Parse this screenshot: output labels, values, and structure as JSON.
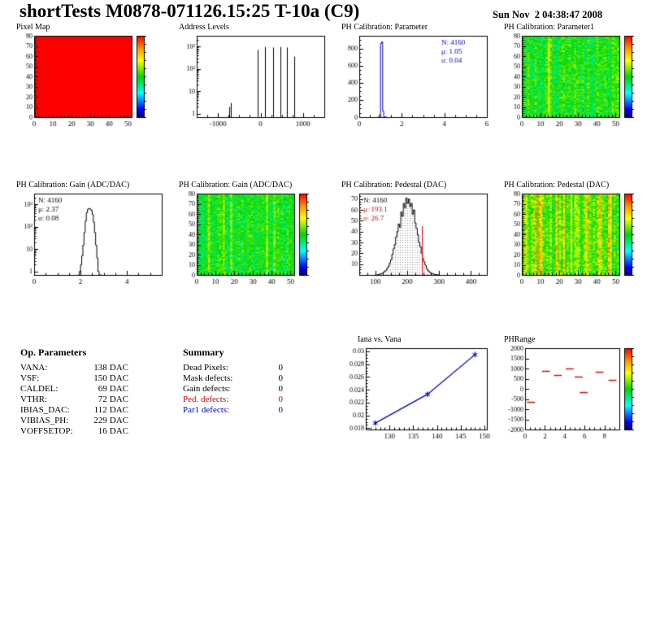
{
  "header": {
    "title": "shortTests M0878-071126.15:25 T-10a (C9)",
    "timestamp": "Sun Nov  2 04:38:47 2008"
  },
  "op_parameters": {
    "title": "Op. Parameters",
    "rows": [
      {
        "label": "VANA:",
        "num": "138",
        "unit": "DAC"
      },
      {
        "label": "VSF:",
        "num": "150",
        "unit": "DAC"
      },
      {
        "label": "CALDEL:",
        "num": "69",
        "unit": "DAC"
      },
      {
        "label": "VTHR:",
        "num": "72",
        "unit": "DAC"
      },
      {
        "label": "IBIAS_DAC:",
        "num": "112",
        "unit": "DAC"
      },
      {
        "label": "VIBIAS_PH:",
        "num": "229",
        "unit": "DAC"
      },
      {
        "label": "VOFFSETOP:",
        "num": "16",
        "unit": "DAC"
      }
    ]
  },
  "summary": {
    "title": "Summary",
    "rows": [
      {
        "label": "Dead Pixels:",
        "value": "0"
      },
      {
        "label": "Mask defects:",
        "value": "0"
      },
      {
        "label": "Gain defects:",
        "value": "0"
      },
      {
        "label": "Ped. defects:",
        "value": "0",
        "color": "#cc0000"
      },
      {
        "label": "Par1 defects:",
        "value": "0",
        "color": "#0000cc"
      }
    ]
  },
  "chart_data": [
    {
      "id": "pixel-map",
      "type": "heatmap",
      "title": "Pixel Map",
      "x_range": [
        0,
        52
      ],
      "x_ticks": [
        0,
        10,
        20,
        30,
        40,
        50
      ],
      "x_minor": 2,
      "y_range": [
        0,
        80
      ],
      "y_ticks": [
        0,
        10,
        20,
        30,
        40,
        50,
        60,
        70,
        80
      ],
      "y_minor": 2,
      "cols": 52,
      "rows": 80,
      "uniform": 1.0,
      "colorbar": true,
      "note": "all 4160 pixels at maximum (solid red), rainbow z-palette"
    },
    {
      "id": "address-levels",
      "type": "spikes",
      "title": "Address Levels",
      "log_y": true,
      "x_range": [
        -1500,
        1500
      ],
      "x_ticks": [
        -1000,
        0,
        1000
      ],
      "x_minor": 250,
      "y_range_log": [
        0.7,
        3000
      ],
      "y_decades": [
        1,
        10,
        100,
        1000
      ],
      "spikes": [
        [
          -740,
          2
        ],
        [
          -705,
          3
        ],
        [
          -60,
          700
        ],
        [
          110,
          950
        ],
        [
          290,
          900
        ],
        [
          460,
          950
        ],
        [
          630,
          900
        ],
        [
          800,
          350
        ]
      ]
    },
    {
      "id": "ph-cal-parameter",
      "type": "hist",
      "title": "PH Calibration: Parameter",
      "color": "#0000cc",
      "x_range": [
        0,
        6
      ],
      "x_ticks": [
        0,
        2,
        4,
        6
      ],
      "x_minor": 0.5,
      "y_range": [
        0,
        950
      ],
      "y_ticks": [
        0,
        200,
        400,
        600,
        800
      ],
      "y_minor": 50,
      "bins": {
        "start": 0.85,
        "step": 0.05,
        "heights": [
          0,
          1,
          30,
          860,
          880,
          70,
          4,
          1,
          0
        ]
      },
      "stats": {
        "pos": "tr",
        "lines": [
          {
            "text": "N: 4160",
            "color": "#0000cc"
          },
          {
            "text": "μ: 1.05",
            "color": "#0000cc"
          },
          {
            "text": "σ: 0.04",
            "color": "#0000cc"
          }
        ]
      }
    },
    {
      "id": "ph-cal-parameter1-map",
      "type": "heatmap",
      "title": "PH Calibration: Parameter1",
      "x_range": [
        0,
        52
      ],
      "x_ticks": [
        0,
        10,
        20,
        30,
        40,
        50
      ],
      "x_minor": 2,
      "y_range": [
        0,
        80
      ],
      "y_ticks": [
        0,
        10,
        20,
        30,
        40,
        50,
        60,
        70,
        80
      ],
      "y_minor": 2,
      "cols": 52,
      "rows": 80,
      "seed": 11,
      "base": 0.5,
      "stripe": 0.12,
      "bright_prob": 0.06,
      "bright_amp": 0.15,
      "speckle": 0.2,
      "colorbar": true
    },
    {
      "id": "gain-hist",
      "type": "hist",
      "title": "PH Calibration: Gain (ADC/DAC)",
      "color": "#000000",
      "log_y": true,
      "x_range": [
        0,
        5.5
      ],
      "x_ticks": [
        0,
        2,
        4
      ],
      "x_minor": 0.5,
      "y_range_log": [
        0.7,
        3000
      ],
      "y_decades": [
        1,
        10,
        100,
        1000
      ],
      "bins": {
        "start": 1.9,
        "step": 0.05,
        "heights": [
          0,
          1,
          2,
          5,
          15,
          55,
          180,
          420,
          600,
          650,
          620,
          540,
          350,
          160,
          55,
          15,
          4,
          1,
          0,
          0
        ]
      },
      "stats": {
        "pos": "tl",
        "lines": [
          {
            "text": "N: 4160",
            "color": "#000000"
          },
          {
            "text": "μ: 2.37",
            "color": "#000000"
          },
          {
            "text": "σ: 0.08",
            "color": "#000000"
          }
        ]
      }
    },
    {
      "id": "gain-map",
      "type": "heatmap",
      "title": "PH Calibration: Gain (ADC/DAC)",
      "x_range": [
        0,
        52
      ],
      "x_ticks": [
        0,
        10,
        20,
        30,
        40,
        50
      ],
      "x_minor": 2,
      "y_range": [
        0,
        80
      ],
      "y_ticks": [
        0,
        10,
        20,
        30,
        40,
        50,
        60,
        70,
        80
      ],
      "y_minor": 2,
      "cols": 52,
      "rows": 80,
      "seed": 23,
      "base": 0.49,
      "stripe": 0.1,
      "bright_prob": 0.05,
      "bright_amp": 0.12,
      "speckle": 0.18,
      "colorbar": true
    },
    {
      "id": "pedestal-hist",
      "type": "hist",
      "title": "PH Calibration: Pedestal (DAC)",
      "color": "#000000",
      "fill": "dots",
      "x_range": [
        50,
        450
      ],
      "x_ticks": [
        100,
        200,
        300,
        400
      ],
      "x_minor": 25,
      "y_range": [
        0,
        75
      ],
      "y_ticks": [
        10,
        20,
        30,
        40,
        50,
        60,
        70
      ],
      "y_minor": 2.5,
      "bins": {
        "start": 100,
        "step": 4,
        "heights": [
          0,
          0,
          0.4,
          0.7,
          1,
          1.6,
          2.2,
          3.5,
          4,
          6,
          8,
          11,
          14,
          19,
          24,
          28,
          35,
          40,
          47,
          44,
          58,
          54,
          66,
          62,
          71,
          66,
          70,
          63,
          66,
          56,
          60,
          48,
          43,
          37,
          30,
          26,
          20,
          15,
          12,
          9,
          6,
          4,
          3,
          2,
          1.4,
          1,
          0.6,
          0.4,
          0.2,
          0.1
        ]
      },
      "vline": {
        "x": 246,
        "h": 45,
        "color": "#ee0000"
      },
      "stats": {
        "pos": "tl",
        "lines": [
          {
            "text": "N: 4160",
            "color": "#000000"
          },
          {
            "text": "μ: 193.1",
            "color": "#cc0000"
          },
          {
            "text": "σ: 26.7",
            "color": "#cc0000"
          }
        ]
      }
    },
    {
      "id": "pedestal-map",
      "type": "heatmap",
      "title": "PH Calibration: Pedestal (DAC)",
      "x_range": [
        0,
        52
      ],
      "x_ticks": [
        0,
        10,
        20,
        30,
        40,
        50
      ],
      "x_minor": 2,
      "y_range": [
        0,
        80
      ],
      "y_ticks": [
        0,
        10,
        20,
        30,
        40,
        50,
        60,
        70,
        80
      ],
      "y_minor": 2,
      "cols": 52,
      "rows": 80,
      "seed": 37,
      "base": 0.56,
      "stripe": 0.16,
      "bright_prob": 0.12,
      "bright_amp": 0.18,
      "speckle": 0.22,
      "colorbar": true
    },
    {
      "id": "iana-vs-vana",
      "type": "line",
      "title": "Iana vs. Vana",
      "color": "#0000cc",
      "x_range": [
        125,
        150.5
      ],
      "x_ticks": [
        130,
        135,
        140,
        145,
        150
      ],
      "x_minor": 1,
      "y_range": [
        0.0178,
        0.0305
      ],
      "y_ticks": [
        0.018,
        0.02,
        0.022,
        0.024,
        0.026,
        0.028,
        0.03
      ],
      "y_minor": 0.0005,
      "points": [
        [
          127,
          0.0188
        ],
        [
          138,
          0.0233
        ],
        [
          148,
          0.0295
        ]
      ],
      "y_err": 0.0003,
      "marker": "star"
    },
    {
      "id": "phrange",
      "type": "segments",
      "title": "PHRange",
      "color": "#dd0000",
      "x_range": [
        0,
        9.5
      ],
      "x_ticks": [
        0,
        2,
        4,
        6,
        8
      ],
      "x_minor": 0.5,
      "y_range": [
        -2000,
        2000
      ],
      "y_ticks": [
        2000,
        1500,
        1000,
        500,
        0,
        -500,
        -1000,
        -1500,
        -2000
      ],
      "segments": [
        [
          0.2,
          1.0,
          -650
        ],
        [
          1.7,
          2.5,
          880
        ],
        [
          2.9,
          3.7,
          700
        ],
        [
          4.1,
          4.9,
          1000
        ],
        [
          5.0,
          5.8,
          600
        ],
        [
          5.5,
          6.3,
          -150
        ],
        [
          7.1,
          7.9,
          850
        ],
        [
          8.4,
          9.2,
          430
        ]
      ],
      "colorbar": true
    }
  ]
}
